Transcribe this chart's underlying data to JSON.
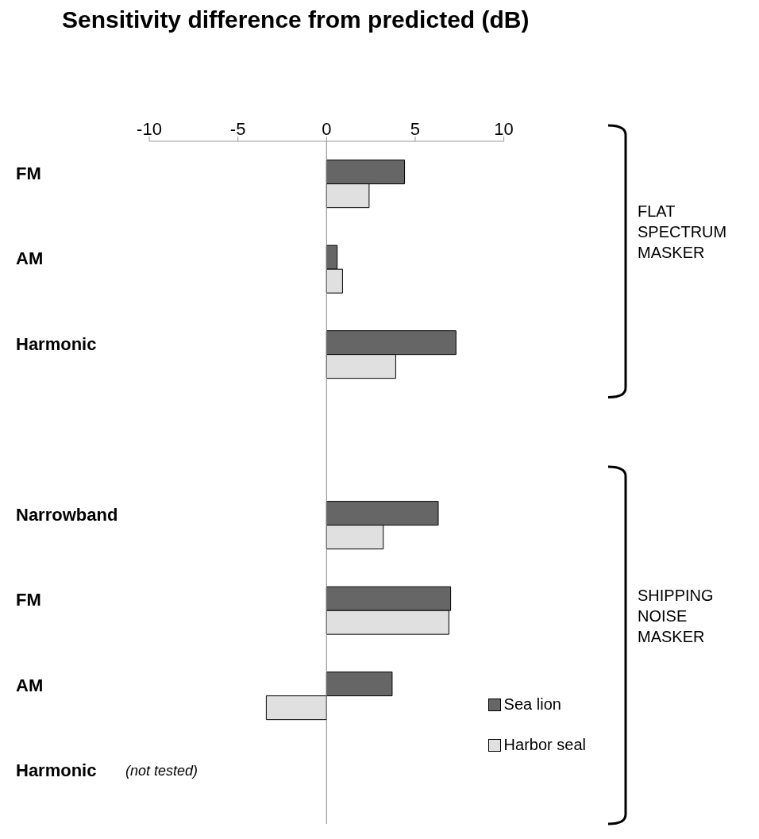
{
  "chart_data": {
    "type": "bar",
    "orientation": "horizontal",
    "title": "Sensitivity difference from predicted (dB)",
    "categories": [
      "FM",
      "AM",
      "Harmonic",
      null,
      "Narrowband",
      "FM",
      "AM",
      "Harmonic"
    ],
    "series": [
      {
        "name": "Sea lion",
        "color": "#666666",
        "values": [
          4.4,
          0.6,
          7.3,
          null,
          6.3,
          7.0,
          3.7,
          null
        ]
      },
      {
        "name": "Harbor seal",
        "color": "#e0e0e0",
        "values": [
          2.4,
          0.9,
          3.9,
          null,
          3.2,
          6.9,
          -3.4,
          null
        ]
      }
    ],
    "xlim": [
      -10,
      10
    ],
    "xticks": [
      -10,
      -5,
      0,
      5,
      10
    ],
    "legend": "bottom right",
    "annotations": [
      "FLAT SPECTRUM MASKER",
      "SHIPPING NOISE MASKER",
      "(not tested)"
    ]
  }
}
